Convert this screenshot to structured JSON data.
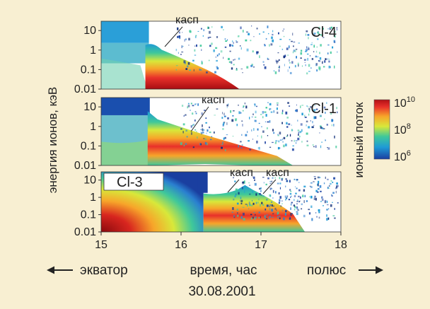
{
  "chart_data": {
    "type": "heatmap",
    "ylabel": "энергия ионов, кэВ",
    "xlabel": "время, час",
    "x_ticks": [
      "15",
      "16",
      "17",
      "18"
    ],
    "xlim": [
      15,
      18
    ],
    "y_ticks": [
      "10",
      "1",
      "0.1",
      "0.01"
    ],
    "ylim_keV": [
      0.01,
      30
    ],
    "y_scale": "log",
    "date": "30.08.2001",
    "left_label": "экватор",
    "right_label": "полюс",
    "colorbar": {
      "label": "ионный поток",
      "ticks": [
        {
          "base": "10",
          "exp": "10"
        },
        {
          "base": "10",
          "exp": "8"
        },
        {
          "base": "10",
          "exp": "6"
        }
      ],
      "colors": [
        "#1a3fa0",
        "#1f9bd6",
        "#3fc89a",
        "#d8e83a",
        "#f7a52a",
        "#e8302a",
        "#b01015"
      ]
    },
    "panels": [
      {
        "name": "Cl-4",
        "annotations": [
          "касп"
        ],
        "onset_hour": 15.58
      },
      {
        "name": "Cl-1",
        "annotations": [
          "касп"
        ],
        "onset_hour": 15.6
      },
      {
        "name": "Cl-3",
        "annotations": [
          "касп",
          "касп"
        ],
        "onset_hour": 16.28
      }
    ]
  }
}
